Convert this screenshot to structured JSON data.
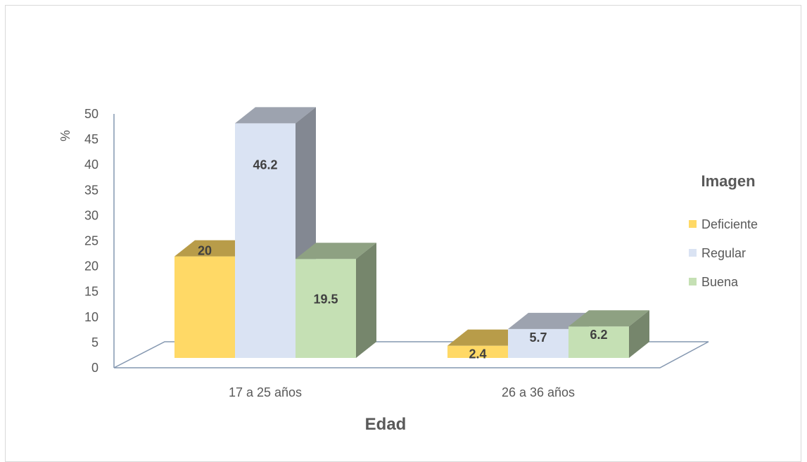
{
  "chart_data": {
    "type": "bar",
    "categories": [
      "17 a 25 años",
      "26 a 36 años"
    ],
    "series": [
      {
        "name": "Deficiente",
        "values": [
          20,
          2.4
        ],
        "color": "#ffd966",
        "labels": [
          "20",
          "2.4"
        ]
      },
      {
        "name": "Regular",
        "values": [
          46.2,
          5.7
        ],
        "color": "#dae3f3",
        "labels": [
          "46.2",
          "5.7"
        ]
      },
      {
        "name": "Buena",
        "values": [
          19.5,
          6.2
        ],
        "color": "#c5e0b4",
        "labels": [
          "19.5",
          "6.2"
        ]
      }
    ],
    "xlabel": "Edad",
    "ylabel": "%",
    "ylim": [
      0,
      50
    ],
    "yticks": [
      "0",
      "5",
      "10",
      "15",
      "20",
      "25",
      "30",
      "35",
      "40",
      "45",
      "50"
    ],
    "legend_title": "Imagen",
    "legend_position": "right",
    "style": "3d-clustered-column",
    "grid": false
  }
}
